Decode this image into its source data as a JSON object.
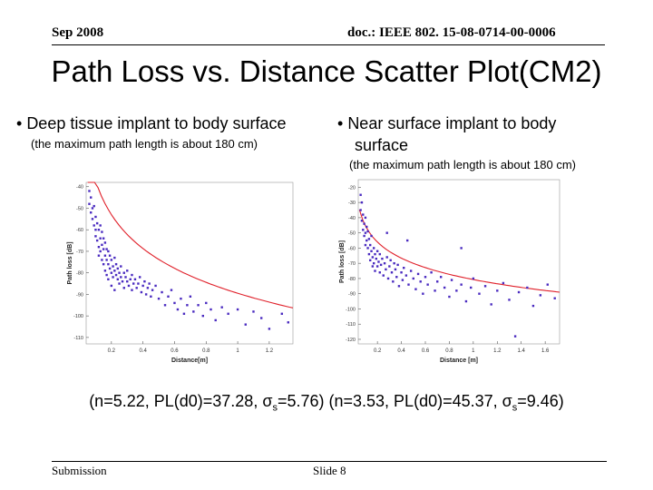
{
  "header": {
    "date": "Sep 2008",
    "doc_id": "doc.: IEEE 802. 15-08-0714-00-0006"
  },
  "title": "Path Loss vs. Distance Scatter Plot(CM2)",
  "left_block": {
    "bullet": "Deep tissue implant to body surface",
    "note": "(the maximum path length is about 180 cm)"
  },
  "right_block": {
    "bullet_line1": "Near surface implant to body",
    "bullet_line2": "surface",
    "note": "(the maximum path length is about 180 cm)"
  },
  "caption": {
    "part1": "(n=5.22, PL(d0)=37.28, σ",
    "part1_sub": "s",
    "part1_end": "=5.76)",
    "part2": "(n=3.53, PL(d0)=45.37, σ",
    "part2_sub": "s",
    "part2_end": "=9.46)"
  },
  "footer": {
    "left": "Submission",
    "center": "Slide 8"
  },
  "colors": {
    "points": "#4a2bc0",
    "fit_line": "#e0202a"
  },
  "chart_data": [
    {
      "type": "scatter",
      "title": "",
      "xlabel": "Distance[m]",
      "ylabel": "Path loss [dB]",
      "xlim": [
        0.04,
        1.35
      ],
      "ylim": [
        -113,
        -38
      ],
      "xticks": [
        0.2,
        0.4,
        0.6,
        0.8,
        1,
        1.2
      ],
      "xtick_labels": [
        "0.2",
        "0.4",
        "0.6",
        "0.8",
        "1",
        "1.2"
      ],
      "yticks": [
        -40,
        -50,
        -60,
        -70,
        -80,
        -90,
        -100,
        -110
      ],
      "ytick_labels": [
        "-40",
        "-50",
        "-60",
        "-70",
        "-80",
        "-90",
        "-100",
        "-110"
      ],
      "grid": false,
      "fit": {
        "name": "",
        "n": 5.22,
        "pl_d0": 37.28,
        "d0": 0.1,
        "sigma": 5.76
      },
      "points": [
        [
          0.06,
          -42
        ],
        [
          0.06,
          -48
        ],
        [
          0.07,
          -45
        ],
        [
          0.07,
          -52
        ],
        [
          0.08,
          -50
        ],
        [
          0.08,
          -55
        ],
        [
          0.09,
          -49
        ],
        [
          0.09,
          -58
        ],
        [
          0.1,
          -54
        ],
        [
          0.1,
          -60
        ],
        [
          0.1,
          -63
        ],
        [
          0.11,
          -57
        ],
        [
          0.11,
          -65
        ],
        [
          0.12,
          -60
        ],
        [
          0.12,
          -68
        ],
        [
          0.12,
          -72
        ],
        [
          0.13,
          -64
        ],
        [
          0.13,
          -70
        ],
        [
          0.13,
          -58
        ],
        [
          0.14,
          -67
        ],
        [
          0.14,
          -74
        ],
        [
          0.14,
          -61
        ],
        [
          0.15,
          -69
        ],
        [
          0.15,
          -76
        ],
        [
          0.15,
          -64
        ],
        [
          0.16,
          -72
        ],
        [
          0.16,
          -79
        ],
        [
          0.16,
          -66
        ],
        [
          0.17,
          -74
        ],
        [
          0.17,
          -81
        ],
        [
          0.17,
          -69
        ],
        [
          0.18,
          -76
        ],
        [
          0.18,
          -70
        ],
        [
          0.18,
          -83
        ],
        [
          0.19,
          -78
        ],
        [
          0.19,
          -72
        ],
        [
          0.2,
          -80
        ],
        [
          0.2,
          -74
        ],
        [
          0.2,
          -86
        ],
        [
          0.21,
          -77
        ],
        [
          0.21,
          -82
        ],
        [
          0.22,
          -79
        ],
        [
          0.22,
          -73
        ],
        [
          0.22,
          -88
        ],
        [
          0.23,
          -81
        ],
        [
          0.23,
          -76
        ],
        [
          0.24,
          -83
        ],
        [
          0.24,
          -78
        ],
        [
          0.25,
          -80
        ],
        [
          0.25,
          -85
        ],
        [
          0.26,
          -82
        ],
        [
          0.26,
          -77
        ],
        [
          0.27,
          -84
        ],
        [
          0.28,
          -80
        ],
        [
          0.28,
          -87
        ],
        [
          0.29,
          -82
        ],
        [
          0.3,
          -84
        ],
        [
          0.3,
          -79
        ],
        [
          0.31,
          -86
        ],
        [
          0.32,
          -83
        ],
        [
          0.33,
          -81
        ],
        [
          0.33,
          -88
        ],
        [
          0.34,
          -85
        ],
        [
          0.35,
          -83
        ],
        [
          0.36,
          -87
        ],
        [
          0.37,
          -85
        ],
        [
          0.38,
          -82
        ],
        [
          0.39,
          -89
        ],
        [
          0.4,
          -86
        ],
        [
          0.41,
          -84
        ],
        [
          0.42,
          -90
        ],
        [
          0.43,
          -87
        ],
        [
          0.44,
          -85
        ],
        [
          0.45,
          -91
        ],
        [
          0.46,
          -88
        ],
        [
          0.48,
          -86
        ],
        [
          0.5,
          -92
        ],
        [
          0.52,
          -89
        ],
        [
          0.54,
          -95
        ],
        [
          0.56,
          -91
        ],
        [
          0.58,
          -88
        ],
        [
          0.6,
          -94
        ],
        [
          0.62,
          -97
        ],
        [
          0.64,
          -92
        ],
        [
          0.66,
          -99
        ],
        [
          0.68,
          -95
        ],
        [
          0.7,
          -91
        ],
        [
          0.72,
          -98
        ],
        [
          0.75,
          -95
        ],
        [
          0.78,
          -100
        ],
        [
          0.8,
          -94
        ],
        [
          0.83,
          -97
        ],
        [
          0.86,
          -102
        ],
        [
          0.9,
          -96
        ],
        [
          0.94,
          -99
        ],
        [
          1.0,
          -97
        ],
        [
          1.05,
          -104
        ],
        [
          1.1,
          -98
        ],
        [
          1.15,
          -101
        ],
        [
          1.2,
          -106
        ],
        [
          1.28,
          -99
        ],
        [
          1.32,
          -103
        ]
      ]
    },
    {
      "type": "scatter",
      "title": "",
      "xlabel": "Distance [m]",
      "ylabel": "Path loss [dB]",
      "xlim": [
        0.04,
        1.72
      ],
      "ylim": [
        -123,
        -15
      ],
      "xticks": [
        0.2,
        0.4,
        0.6,
        0.8,
        1,
        1.2,
        1.4,
        1.6
      ],
      "xtick_labels": [
        "0.2",
        "0.4",
        "0.6",
        "0.8",
        "1",
        "1.2",
        "1.4",
        "1.6"
      ],
      "yticks": [
        -20,
        -30,
        -40,
        -50,
        -60,
        -70,
        -80,
        -90,
        -100,
        -110,
        -120
      ],
      "ytick_labels": [
        "-20",
        "-30",
        "-40",
        "-50",
        "-60",
        "-70",
        "-80",
        "-90",
        "-100",
        "-110",
        "-120"
      ],
      "grid": false,
      "fit": {
        "name": "",
        "n": 3.53,
        "pl_d0": 45.37,
        "d0": 0.1,
        "sigma": 9.46
      },
      "points": [
        [
          0.06,
          -25
        ],
        [
          0.06,
          -35
        ],
        [
          0.07,
          -30
        ],
        [
          0.07,
          -42
        ],
        [
          0.08,
          -38
        ],
        [
          0.08,
          -48
        ],
        [
          0.09,
          -44
        ],
        [
          0.09,
          -52
        ],
        [
          0.1,
          -40
        ],
        [
          0.1,
          -50
        ],
        [
          0.1,
          -58
        ],
        [
          0.11,
          -46
        ],
        [
          0.11,
          -55
        ],
        [
          0.12,
          -60
        ],
        [
          0.12,
          -49
        ],
        [
          0.13,
          -64
        ],
        [
          0.13,
          -54
        ],
        [
          0.14,
          -58
        ],
        [
          0.14,
          -68
        ],
        [
          0.15,
          -62
        ],
        [
          0.15,
          -52
        ],
        [
          0.16,
          -66
        ],
        [
          0.16,
          -72
        ],
        [
          0.17,
          -60
        ],
        [
          0.17,
          -70
        ],
        [
          0.18,
          -64
        ],
        [
          0.18,
          -75
        ],
        [
          0.19,
          -67
        ],
        [
          0.2,
          -62
        ],
        [
          0.2,
          -72
        ],
        [
          0.21,
          -69
        ],
        [
          0.22,
          -76
        ],
        [
          0.22,
          -64
        ],
        [
          0.23,
          -71
        ],
        [
          0.24,
          -67
        ],
        [
          0.25,
          -78
        ],
        [
          0.26,
          -70
        ],
        [
          0.27,
          -74
        ],
        [
          0.28,
          -66
        ],
        [
          0.29,
          -80
        ],
        [
          0.3,
          -72
        ],
        [
          0.31,
          -68
        ],
        [
          0.32,
          -76
        ],
        [
          0.33,
          -82
        ],
        [
          0.34,
          -70
        ],
        [
          0.35,
          -74
        ],
        [
          0.36,
          -79
        ],
        [
          0.37,
          -71
        ],
        [
          0.38,
          -85
        ],
        [
          0.4,
          -76
        ],
        [
          0.41,
          -81
        ],
        [
          0.42,
          -73
        ],
        [
          0.44,
          -78
        ],
        [
          0.46,
          -84
        ],
        [
          0.48,
          -75
        ],
        [
          0.5,
          -80
        ],
        [
          0.52,
          -87
        ],
        [
          0.54,
          -77
        ],
        [
          0.56,
          -82
        ],
        [
          0.58,
          -90
        ],
        [
          0.6,
          -79
        ],
        [
          0.62,
          -84
        ],
        [
          0.65,
          -76
        ],
        [
          0.68,
          -88
        ],
        [
          0.7,
          -82
        ],
        [
          0.73,
          -79
        ],
        [
          0.76,
          -86
        ],
        [
          0.8,
          -92
        ],
        [
          0.82,
          -81
        ],
        [
          0.86,
          -88
        ],
        [
          0.9,
          -84
        ],
        [
          0.94,
          -95
        ],
        [
          0.98,
          -86
        ],
        [
          1.0,
          -80
        ],
        [
          1.05,
          -90
        ],
        [
          1.1,
          -85
        ],
        [
          1.15,
          -97
        ],
        [
          1.2,
          -88
        ],
        [
          1.25,
          -83
        ],
        [
          1.3,
          -94
        ],
        [
          1.38,
          -89
        ],
        [
          1.45,
          -86
        ],
        [
          1.5,
          -98
        ],
        [
          1.56,
          -91
        ],
        [
          1.62,
          -84
        ],
        [
          1.68,
          -93
        ],
        [
          0.45,
          -55
        ],
        [
          0.9,
          -60
        ],
        [
          1.35,
          -118
        ],
        [
          0.28,
          -50
        ]
      ]
    }
  ]
}
